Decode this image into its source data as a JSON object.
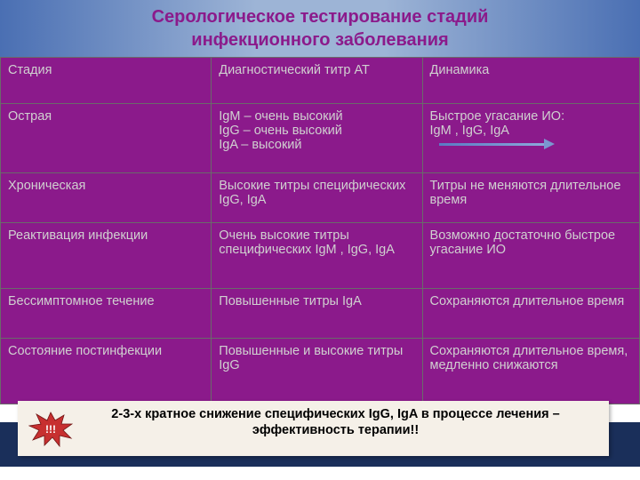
{
  "header": {
    "title_line1": "Серологическое тестирование стадий",
    "title_line2": "инфекционного заболевания"
  },
  "table": {
    "columns": [
      "Стадия",
      "Диагностический титр АТ",
      "Динамика"
    ],
    "rows": [
      [
        "Острая",
        "IgM – очень высокий\nIgG – очень высокий\nIgA – высокий",
        "Быстрое угасание ИО:\nIgM , IgG, IgA"
      ],
      [
        "Хроническая",
        "Высокие титры специфических IgG, IgA",
        "Титры не меняются длительное время"
      ],
      [
        "Реактивация инфекции",
        "Очень высокие титры специфических IgM , IgG, IgA",
        "Возможно достаточно быстрое угасание ИО"
      ],
      [
        "Бессимптомное течение",
        "Повышенные титры IgA",
        "Сохраняются длительное время"
      ],
      [
        "Состояние постинфекции",
        "Повышенные и высокие титры IgG",
        "Сохраняются длительное время, медленно снижаются"
      ]
    ]
  },
  "footer": {
    "line1": "2-3-х кратное снижение специфических IgG, IgA в процессе лечения –",
    "line2": "эффективность терапии!!",
    "burst_label": "!!!",
    "burst_fill": "#c73030",
    "burst_stroke": "#701515"
  },
  "colors": {
    "header_grad_edge": "#4a6fb3",
    "header_grad_mid": "#9db4d6",
    "title_color": "#8b1a8b",
    "cell_bg": "#8b1a8b",
    "cell_text": "#d0d0d0",
    "border": "#6a6a6a",
    "footer_dark": "#1a2f5a",
    "footer_box": "#f5f0e8",
    "arrow": "#6a8acb"
  }
}
